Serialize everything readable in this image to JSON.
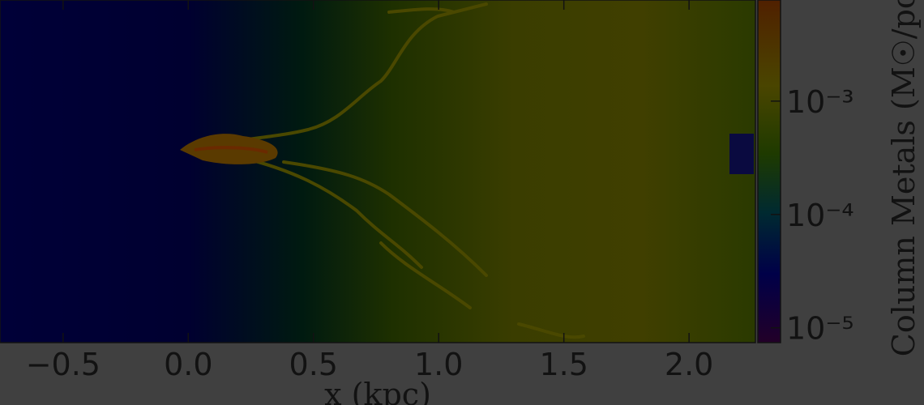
{
  "chart_data": {
    "type": "image",
    "xlabel": "x   (kpc)",
    "xlim": [
      -0.752,
      2.265
    ],
    "xticks": [
      {
        "value": -0.5,
        "label": "−0.5"
      },
      {
        "value": 0,
        "label": "0.0"
      },
      0.5,
      {
        "value": 1,
        "label": "1.0"
      },
      1.5,
      {
        "value": 2,
        "label": "2.0"
      }
    ],
    "colorbar": {
      "label": "Column Metals (M☉/pc",
      "log": true,
      "clim": [
        7.4e-06,
        0.0078
      ],
      "ticks": [
        {
          "value": 0.001,
          "label": "10⁻³"
        },
        {
          "value": 0.0001,
          "label": "10⁻⁴"
        },
        {
          "value": 1e-05,
          "label": "10⁻⁵"
        }
      ]
    }
  }
}
